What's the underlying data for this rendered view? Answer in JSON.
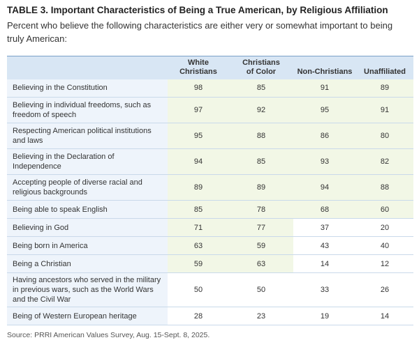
{
  "title": "TABLE 3.  Important Characteristics of Being a True American, by Religious Affiliation",
  "subtitle": "Percent who believe the following characteristics are either very or somewhat important to being truly American:",
  "columns": [
    {
      "line1": "White",
      "line2": "Christians"
    },
    {
      "line1": "Christians",
      "line2": "of Color"
    },
    {
      "line1": "Non-Christians",
      "line2": ""
    },
    {
      "line1": "Unaffiliated",
      "line2": ""
    }
  ],
  "rows": [
    {
      "label": "Believing in the Constitution",
      "values": [
        "98",
        "85",
        "91",
        "89"
      ]
    },
    {
      "label": "Believing in individual freedoms, such as freedom of speech",
      "values": [
        "97",
        "92",
        "95",
        "91"
      ]
    },
    {
      "label": "Respecting American political institutions and laws",
      "values": [
        "95",
        "88",
        "86",
        "80"
      ]
    },
    {
      "label": "Believing in the Declaration of Independence",
      "values": [
        "94",
        "85",
        "93",
        "82"
      ]
    },
    {
      "label": "Accepting people of diverse racial and religious backgrounds",
      "values": [
        "89",
        "89",
        "94",
        "88"
      ]
    },
    {
      "label": "Being able to speak English",
      "values": [
        "85",
        "78",
        "68",
        "60"
      ]
    },
    {
      "label": "Believing in God",
      "values": [
        "71",
        "77",
        "37",
        "20"
      ]
    },
    {
      "label": "Being born in America",
      "values": [
        "63",
        "59",
        "43",
        "40"
      ]
    },
    {
      "label": "Being a Christian",
      "values": [
        "59",
        "63",
        "14",
        "12"
      ]
    },
    {
      "label": "Having ancestors who served in the military in previous wars, such as the World Wars and the Civil War",
      "values": [
        "50",
        "50",
        "33",
        "26"
      ]
    },
    {
      "label": "Being of Western European heritage",
      "values": [
        "28",
        "23",
        "19",
        "14"
      ]
    }
  ],
  "highlight_color": "#f2f7e6",
  "header_color": "#d8e6f4",
  "source": "Source: PRRI American Values Survey, Aug. 15-Sept. 8, 2025."
}
